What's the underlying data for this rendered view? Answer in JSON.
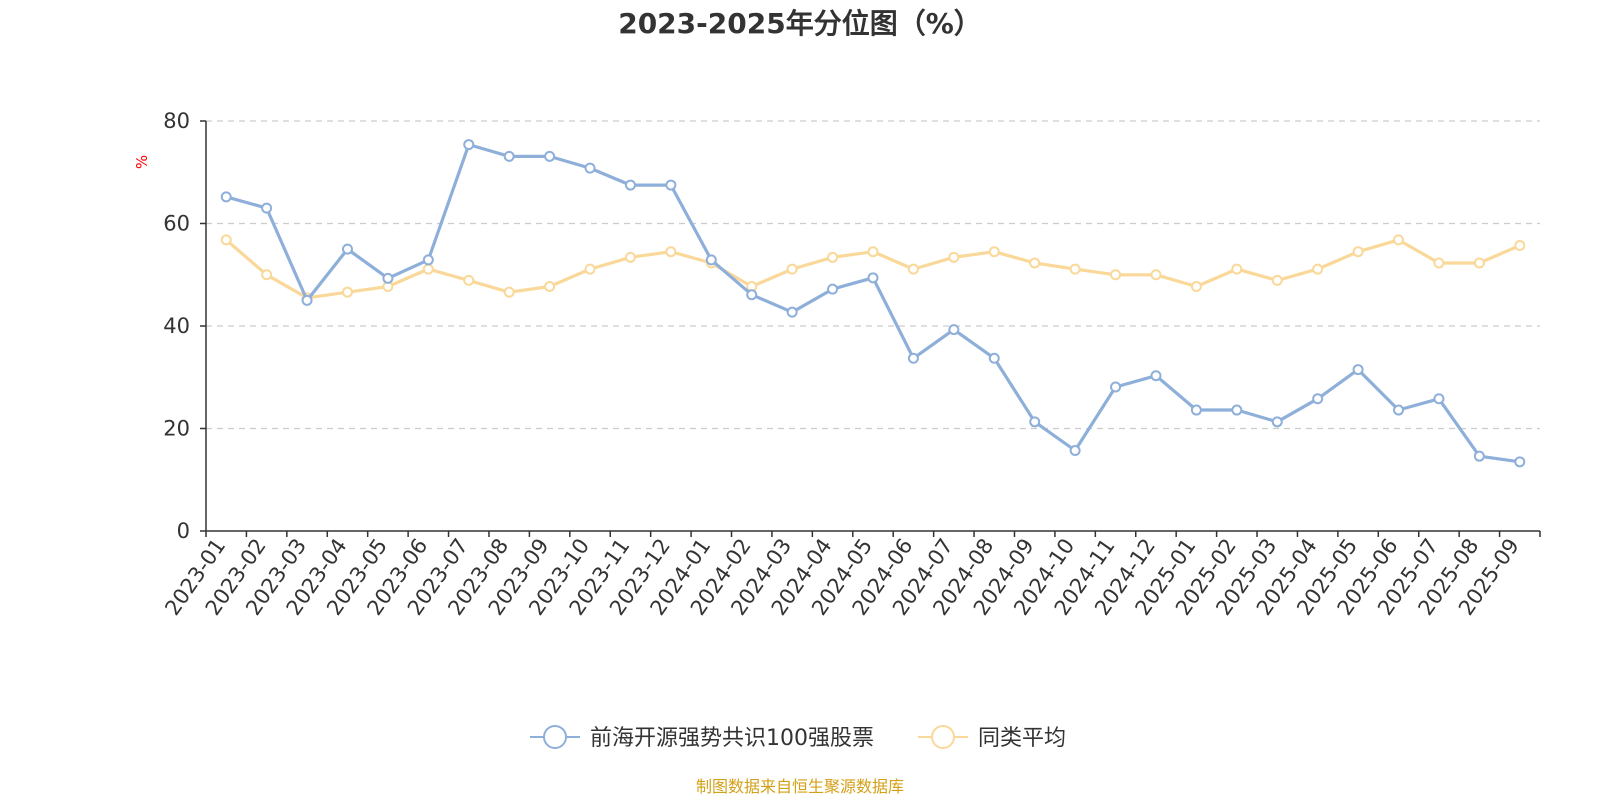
{
  "chart_data": {
    "type": "line",
    "title": "2023-2025年分位图（%）",
    "ylabel": "%",
    "xlabel": "",
    "ylim": [
      0,
      80
    ],
    "yticks": [
      0,
      20,
      40,
      60,
      80
    ],
    "grid": true,
    "legend_position": "bottom-center",
    "categories": [
      "2023-01",
      "2023-02",
      "2023-03",
      "2023-04",
      "2023-05",
      "2023-06",
      "2023-07",
      "2023-08",
      "2023-09",
      "2023-10",
      "2023-11",
      "2023-12",
      "2024-01",
      "2024-02",
      "2024-03",
      "2024-04",
      "2024-05",
      "2024-06",
      "2024-07",
      "2024-08",
      "2024-09",
      "2024-10",
      "2024-11",
      "2024-12",
      "2025-01",
      "2025-02",
      "2025-03",
      "2025-04",
      "2025-05",
      "2025-06",
      "2025-07",
      "2025-08",
      "2025-09"
    ],
    "series": [
      {
        "name": "前海开源强势共识100强股票",
        "color": "#8eafd9",
        "values": [
          65.2,
          63.0,
          45.0,
          55.0,
          49.3,
          52.9,
          75.4,
          73.1,
          73.1,
          70.8,
          67.5,
          67.5,
          52.9,
          46.1,
          42.7,
          47.2,
          49.4,
          33.7,
          39.3,
          33.7,
          21.3,
          15.7,
          28.1,
          30.3,
          23.6,
          23.6,
          21.3,
          25.8,
          31.5,
          23.6,
          25.8,
          14.6,
          13.5
        ]
      },
      {
        "name": "同类平均",
        "color": "#f9d899",
        "values": [
          56.8,
          50.0,
          45.5,
          46.6,
          47.7,
          51.1,
          48.9,
          46.6,
          47.7,
          51.1,
          53.4,
          54.5,
          52.3,
          47.7,
          51.1,
          53.4,
          54.5,
          51.1,
          53.4,
          54.5,
          52.3,
          51.1,
          50.0,
          50.0,
          47.7,
          51.1,
          48.9,
          51.1,
          54.5,
          56.8,
          52.3,
          52.3,
          55.7
        ]
      }
    ]
  },
  "source_text": "制图数据来自恒生聚源数据库",
  "colors": {
    "axis": "#333333",
    "grid": "#cccccc",
    "ylabel": "#ff0000",
    "source": "#d4a017"
  }
}
